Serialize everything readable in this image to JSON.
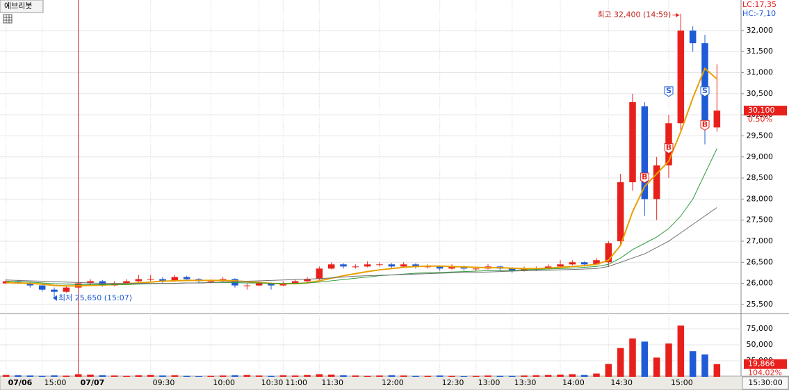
{
  "header": {
    "symbol": "에브리봇",
    "lc": "LC:17,35",
    "hc": "HC:-7,10",
    "cursor_time": "15:30:00"
  },
  "chart_data": [
    {
      "type": "candlestick",
      "up_color": "#e8201c",
      "down_color": "#1f5bd6",
      "xlim": [
        -0.5,
        59.5
      ],
      "ylim": [
        25300,
        32725
      ],
      "yticks": [
        {
          "value": 25500,
          "label": "25,500"
        },
        {
          "value": 26000,
          "label": "26,000"
        },
        {
          "value": 26500,
          "label": "26,500"
        },
        {
          "value": 27000,
          "label": "27,000"
        },
        {
          "value": 27500,
          "label": "27,500"
        },
        {
          "value": 28000,
          "label": "28,000"
        },
        {
          "value": 28500,
          "label": "28,500"
        },
        {
          "value": 29000,
          "label": "29,000"
        },
        {
          "value": 29500,
          "label": "29,500"
        },
        {
          "value": 30000,
          "label": "30,000"
        },
        {
          "value": 30500,
          "label": "30,500"
        },
        {
          "value": 31000,
          "label": "31,000"
        },
        {
          "value": 31500,
          "label": "31,500"
        },
        {
          "value": 32000,
          "label": "32,000"
        }
      ],
      "xticks": [
        {
          "value": 0,
          "label": "07/06"
        },
        {
          "value": 3,
          "label": "15:00"
        },
        {
          "value": 6,
          "label": "07/07"
        },
        {
          "value": 12,
          "label": "09:30"
        },
        {
          "value": 17,
          "label": "10:00"
        },
        {
          "value": 21,
          "label": "10:30"
        },
        {
          "value": 23,
          "label": "11:00"
        },
        {
          "value": 26,
          "label": "11:30"
        },
        {
          "value": 31,
          "label": "12:00"
        },
        {
          "value": 36,
          "label": "12:30"
        },
        {
          "value": 39,
          "label": "13:00"
        },
        {
          "value": 42,
          "label": "13:30"
        },
        {
          "value": 46,
          "label": "14:00"
        },
        {
          "value": 50,
          "label": "14:30"
        },
        {
          "value": 55,
          "label": "15:00"
        }
      ],
      "day_separator_color": "#c8202a",
      "ohlc": [
        [
          26000,
          26100,
          25980,
          26050
        ],
        [
          26050,
          26080,
          25980,
          26000
        ],
        [
          26000,
          26020,
          25900,
          25950
        ],
        [
          25950,
          25980,
          25800,
          25850
        ],
        [
          25850,
          25900,
          25650,
          25800
        ],
        [
          25800,
          25950,
          25780,
          25900
        ],
        [
          25900,
          26050,
          25880,
          26000
        ],
        [
          26000,
          26100,
          25950,
          26050
        ],
        [
          26050,
          26080,
          25920,
          25950
        ],
        [
          25950,
          26050,
          25930,
          26000
        ],
        [
          26000,
          26100,
          25980,
          26050
        ],
        [
          26050,
          26200,
          26030,
          26100
        ],
        [
          26100,
          26200,
          26050,
          26100
        ],
        [
          26100,
          26150,
          26000,
          26050
        ],
        [
          26050,
          26200,
          26030,
          26150
        ],
        [
          26150,
          26180,
          26050,
          26100
        ],
        [
          26100,
          26120,
          26000,
          26050
        ],
        [
          26050,
          26100,
          26000,
          26050
        ],
        [
          26050,
          26150,
          26030,
          26100
        ],
        [
          26100,
          26120,
          25900,
          25950
        ],
        [
          25950,
          26000,
          25850,
          25950
        ],
        [
          25950,
          26050,
          25930,
          26000
        ],
        [
          26000,
          26020,
          25850,
          25950
        ],
        [
          25950,
          26050,
          25930,
          26000
        ],
        [
          26000,
          26100,
          25980,
          26050
        ],
        [
          26050,
          26150,
          26030,
          26100
        ],
        [
          26100,
          26400,
          26080,
          26350
        ],
        [
          26350,
          26500,
          26330,
          26450
        ],
        [
          26450,
          26480,
          26350,
          26400
        ],
        [
          26400,
          26450,
          26350,
          26400
        ],
        [
          26400,
          26520,
          26380,
          26450
        ],
        [
          26450,
          26500,
          26400,
          26450
        ],
        [
          26450,
          26480,
          26350,
          26400
        ],
        [
          26400,
          26500,
          26380,
          26450
        ],
        [
          26450,
          26480,
          26350,
          26400
        ],
        [
          26400,
          26450,
          26350,
          26400
        ],
        [
          26400,
          26420,
          26300,
          26350
        ],
        [
          26350,
          26450,
          26330,
          26400
        ],
        [
          26400,
          26420,
          26300,
          26350
        ],
        [
          26350,
          26400,
          26300,
          26350
        ],
        [
          26350,
          26450,
          26330,
          26400
        ],
        [
          26400,
          26420,
          26300,
          26350
        ],
        [
          26350,
          26380,
          26250,
          26300
        ],
        [
          26300,
          26400,
          26280,
          26350
        ],
        [
          26350,
          26400,
          26300,
          26350
        ],
        [
          26350,
          26450,
          26330,
          26400
        ],
        [
          26400,
          26550,
          26380,
          26450
        ],
        [
          26450,
          26550,
          26430,
          26500
        ],
        [
          26500,
          26520,
          26400,
          26450
        ],
        [
          26450,
          26600,
          26430,
          26550
        ],
        [
          26500,
          27000,
          26400,
          26950
        ],
        [
          27000,
          28600,
          26900,
          28400
        ],
        [
          28400,
          30500,
          28200,
          30300
        ],
        [
          30200,
          30300,
          27600,
          28000
        ],
        [
          28000,
          29000,
          27500,
          28800
        ],
        [
          28800,
          30000,
          28500,
          29800
        ],
        [
          29800,
          32400,
          29600,
          32000
        ],
        [
          32000,
          32100,
          31500,
          31700
        ],
        [
          31700,
          31900,
          29300,
          29700
        ],
        [
          29700,
          31200,
          29600,
          30100
        ]
      ],
      "series": [
        {
          "color": "#e8a000",
          "values": [
            26020,
            26010,
            26000,
            25980,
            25950,
            25940,
            25940,
            25950,
            25960,
            25970,
            25990,
            26010,
            26030,
            26050,
            26060,
            26070,
            26070,
            26070,
            26070,
            26060,
            26040,
            26020,
            26000,
            25990,
            25990,
            26010,
            26060,
            26120,
            26180,
            26230,
            26280,
            26320,
            26350,
            26380,
            26400,
            26410,
            26410,
            26400,
            26390,
            26380,
            26370,
            26370,
            26360,
            26350,
            26350,
            26360,
            26380,
            26400,
            26420,
            26450,
            26550,
            26900,
            27700,
            28300,
            28600,
            28900,
            29600,
            30400,
            31100,
            30850
          ]
        },
        {
          "color": "#2e9a3a",
          "values": [
            26050,
            26040,
            26030,
            26010,
            25990,
            25980,
            25970,
            25970,
            25970,
            25970,
            25970,
            25980,
            25990,
            26000,
            26000,
            26010,
            26010,
            26020,
            26020,
            26020,
            26010,
            26010,
            26000,
            26000,
            26000,
            26010,
            26030,
            26060,
            26090,
            26120,
            26150,
            26180,
            26200,
            26220,
            26240,
            26250,
            26260,
            26270,
            26280,
            26290,
            26300,
            26300,
            26310,
            26320,
            26330,
            26340,
            26350,
            26360,
            26380,
            26400,
            26450,
            26600,
            26800,
            26950,
            27100,
            27300,
            27600,
            28000,
            28600,
            29200
          ]
        },
        {
          "color": "#707070",
          "values": [
            26080,
            26070,
            26060,
            26050,
            26040,
            26030,
            26020,
            26010,
            26000,
            26000,
            26000,
            26000,
            26000,
            26000,
            26000,
            26010,
            26010,
            26020,
            26030,
            26040,
            26050,
            26060,
            26070,
            26080,
            26090,
            26100,
            26110,
            26130,
            26150,
            26170,
            26180,
            26190,
            26200,
            26210,
            26220,
            26230,
            26240,
            26250,
            26250,
            26260,
            26270,
            26280,
            26290,
            26300,
            26300,
            26310,
            26320,
            26330,
            26340,
            26350,
            26400,
            26500,
            26600,
            26700,
            26850,
            27000,
            27200,
            27400,
            27600,
            27800
          ]
        }
      ],
      "high_note": {
        "text": "최고 32,400 (14:59)",
        "index": 56,
        "value": 32400
      },
      "low_note": {
        "text": "최저 25,650 (15:07)",
        "index": 4,
        "value": 25650
      },
      "signals": [
        {
          "label": "B",
          "index": 53,
          "value": 28500
        },
        {
          "label": "B",
          "index": 55,
          "value": 29200
        },
        {
          "label": "S",
          "index": 55,
          "value": 30550
        },
        {
          "label": "S",
          "index": 58,
          "value": 30550
        },
        {
          "label": "B",
          "index": 58,
          "value": 29750
        }
      ],
      "last": {
        "value": 30100,
        "label": "30,100",
        "change": "0.50%"
      }
    },
    {
      "type": "bar",
      "ylim": [
        0,
        97800
      ],
      "yticks": [
        {
          "value": 25000,
          "label": "25,000"
        },
        {
          "value": 50000,
          "label": "50,000"
        },
        {
          "value": 75000,
          "label": "75,000"
        }
      ],
      "values": [
        3000,
        2500,
        2000,
        1500,
        2200,
        1800,
        4000,
        3500,
        2500,
        2000,
        1500,
        2500,
        3000,
        2000,
        2500,
        1500,
        1000,
        1500,
        2000,
        2500,
        3000,
        2000,
        1500,
        2500,
        2000,
        3000,
        4000,
        3500,
        2500,
        2000,
        1500,
        2000,
        2500,
        2000,
        1500,
        1500,
        2000,
        1500,
        1000,
        1500,
        2000,
        1500,
        1500,
        2000,
        2500,
        3000,
        3500,
        4000,
        3000,
        5000,
        20000,
        45000,
        60000,
        55000,
        30000,
        52000,
        80000,
        40000,
        35000,
        19866
      ],
      "last": {
        "value": 19866,
        "label": "19,866",
        "change": "104.02%"
      }
    }
  ]
}
